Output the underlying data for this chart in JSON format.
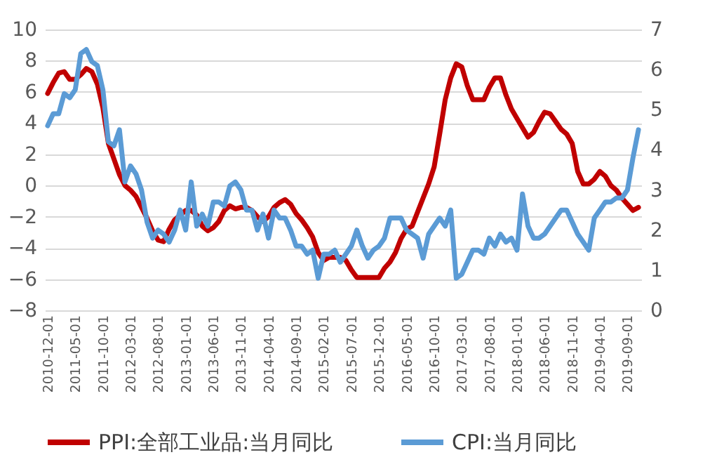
{
  "chart_data": {
    "type": "line",
    "categories": [
      "2010-12-01",
      null,
      null,
      null,
      null,
      "2011-05-01",
      null,
      null,
      null,
      null,
      "2011-10-01",
      null,
      null,
      null,
      null,
      "2012-03-01",
      null,
      null,
      null,
      null,
      "2012-08-01",
      null,
      null,
      null,
      null,
      "2013-01-01",
      null,
      null,
      null,
      null,
      "2013-06-01",
      null,
      null,
      null,
      null,
      "2013-11-01",
      null,
      null,
      null,
      null,
      "2014-04-01",
      null,
      null,
      null,
      null,
      "2014-09-01",
      null,
      null,
      null,
      null,
      "2015-02-01",
      null,
      null,
      null,
      null,
      "2015-07-01",
      null,
      null,
      null,
      null,
      "2015-12-01",
      null,
      null,
      null,
      null,
      "2016-05-01",
      null,
      null,
      null,
      null,
      "2016-10-01",
      null,
      null,
      null,
      null,
      "2017-03-01",
      null,
      null,
      null,
      null,
      "2017-08-01",
      null,
      null,
      null,
      null,
      "2018-01-01",
      null,
      null,
      null,
      null,
      "2018-06-01",
      null,
      null,
      null,
      null,
      "2018-11-01",
      null,
      null,
      null,
      null,
      "2019-04-01",
      null,
      null,
      null,
      null,
      "2019-09-01",
      null,
      null
    ],
    "series": [
      {
        "name": "PPI:全部工业品:当月同比",
        "color": "#c00000",
        "values": [
          5.9,
          6.6,
          7.2,
          7.3,
          6.8,
          6.8,
          7.1,
          7.5,
          7.3,
          6.5,
          5.0,
          2.7,
          1.7,
          0.7,
          0.0,
          -0.3,
          -0.7,
          -1.4,
          -2.1,
          -2.9,
          -3.5,
          -3.6,
          -2.8,
          -2.2,
          -1.9,
          -1.6,
          -1.6,
          -1.9,
          -2.6,
          -2.9,
          -2.7,
          -2.3,
          -1.6,
          -1.3,
          -1.5,
          -1.4,
          -1.4,
          -1.6,
          -2.0,
          -2.3,
          -2.0,
          -1.4,
          -1.1,
          -0.9,
          -1.2,
          -1.8,
          -2.2,
          -2.7,
          -3.3,
          -4.3,
          -4.8,
          -4.6,
          -4.6,
          -4.6,
          -4.8,
          -5.4,
          -5.9,
          -5.9,
          -5.9,
          -5.9,
          -5.9,
          -5.3,
          -4.9,
          -4.3,
          -3.4,
          -2.8,
          -2.6,
          -1.7,
          -0.8,
          0.1,
          1.2,
          3.3,
          5.5,
          6.9,
          7.8,
          7.6,
          6.4,
          5.5,
          5.5,
          5.5,
          6.3,
          6.9,
          6.9,
          5.8,
          4.9,
          4.3,
          3.7,
          3.1,
          3.4,
          4.1,
          4.7,
          4.6,
          4.1,
          3.6,
          3.3,
          2.7,
          0.9,
          0.1,
          0.1,
          0.4,
          0.9,
          0.6,
          0.0,
          -0.3,
          -0.8,
          -1.2,
          -1.6,
          -1.4
        ]
      },
      {
        "name": "CPI:当月同比",
        "color": "#5b9bd5",
        "axis": "y2",
        "values": [
          4.6,
          4.9,
          4.9,
          5.4,
          5.3,
          5.5,
          6.4,
          6.5,
          6.2,
          6.1,
          5.5,
          4.2,
          4.1,
          4.5,
          3.2,
          3.6,
          3.4,
          3.0,
          2.2,
          1.8,
          2.0,
          1.9,
          1.7,
          2.0,
          2.5,
          2.0,
          3.2,
          2.1,
          2.4,
          2.1,
          2.7,
          2.7,
          2.6,
          3.1,
          3.2,
          3.0,
          2.5,
          2.5,
          2.0,
          2.4,
          1.8,
          2.5,
          2.3,
          2.3,
          2.0,
          1.6,
          1.6,
          1.4,
          1.5,
          0.8,
          1.4,
          1.4,
          1.5,
          1.2,
          1.4,
          1.6,
          2.0,
          1.6,
          1.3,
          1.5,
          1.6,
          1.8,
          2.3,
          2.3,
          2.3,
          2.0,
          1.9,
          1.8,
          1.3,
          1.9,
          2.1,
          2.3,
          2.1,
          2.5,
          0.8,
          0.9,
          1.2,
          1.5,
          1.5,
          1.4,
          1.8,
          1.6,
          1.9,
          1.7,
          1.8,
          1.5,
          2.9,
          2.1,
          1.8,
          1.8,
          1.9,
          2.1,
          2.3,
          2.5,
          2.5,
          2.2,
          1.9,
          1.7,
          1.5,
          2.3,
          2.5,
          2.7,
          2.7,
          2.8,
          2.8,
          3.0,
          3.8,
          4.5
        ]
      }
    ],
    "ylim": [
      -8,
      10
    ],
    "yticks": [
      -8,
      -6,
      -4,
      -2,
      0,
      2,
      4,
      6,
      8,
      10
    ],
    "y2lim": [
      0,
      7
    ],
    "y2ticks": [
      0,
      1,
      2,
      3,
      4,
      5,
      6,
      7
    ],
    "grid": "y",
    "legend": "bottom"
  }
}
